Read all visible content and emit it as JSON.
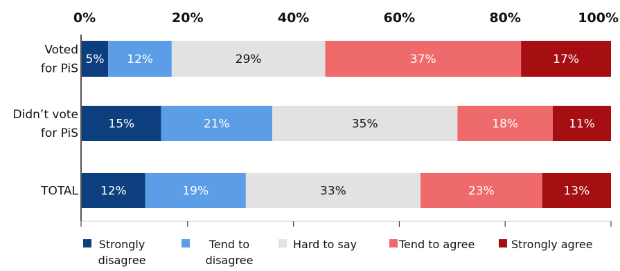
{
  "chart_data": {
    "type": "bar",
    "orientation": "horizontal",
    "stacked": true,
    "xlim": [
      0,
      100
    ],
    "x_ticks": [
      "0%",
      "20%",
      "40%",
      "60%",
      "80%",
      "100%"
    ],
    "categories": [
      "Voted for PiS",
      "Didn’t vote for PiS",
      "TOTAL"
    ],
    "category_lines": [
      [
        "Voted",
        "for PiS"
      ],
      [
        "Didn’t vote",
        "for PiS"
      ],
      [
        "TOTAL"
      ]
    ],
    "series": [
      {
        "name": "Strongly disagree",
        "legend_lines": [
          "Strongly",
          "disagree"
        ],
        "color": "#0d3f7e",
        "label_color": "#ffffff",
        "values": [
          5,
          15,
          12
        ]
      },
      {
        "name": "Tend to disagree",
        "legend_lines": [
          "Tend to",
          "disagree"
        ],
        "color": "#5b9de6",
        "label_color": "#ffffff",
        "values": [
          12,
          21,
          19
        ]
      },
      {
        "name": "Hard to say",
        "legend_lines": [
          "Hard to say"
        ],
        "color": "#e2e2e2",
        "label_color": "#111111",
        "values": [
          29,
          35,
          33
        ]
      },
      {
        "name": "Tend to agree",
        "legend_lines": [
          "Tend to agree"
        ],
        "color": "#ef6b6b",
        "label_color": "#ffffff",
        "values": [
          37,
          18,
          23
        ]
      },
      {
        "name": "Strongly agree",
        "legend_lines": [
          "Strongly agree"
        ],
        "color": "#a50f12",
        "label_color": "#ffffff",
        "values": [
          17,
          11,
          13
        ]
      }
    ],
    "grid": false,
    "legend": "bottom"
  }
}
